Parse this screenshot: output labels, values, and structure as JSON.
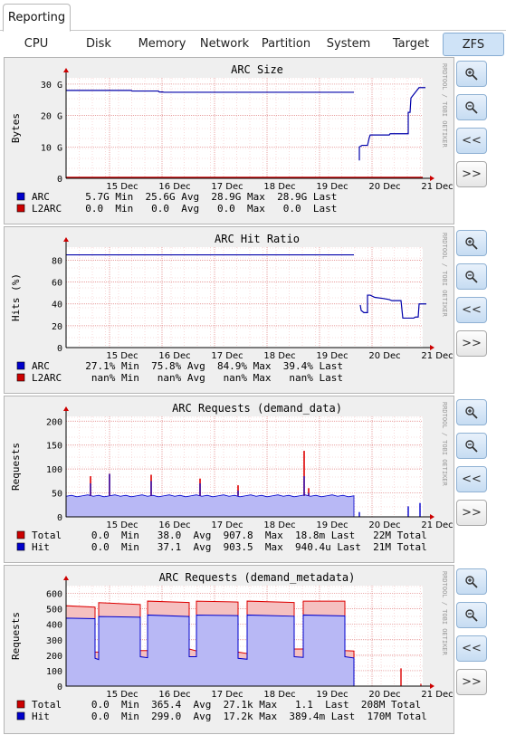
{
  "header": {
    "tab": "Reporting"
  },
  "nav": [
    "CPU",
    "Disk",
    "Memory",
    "Network",
    "Partition",
    "System",
    "Target",
    "ZFS"
  ],
  "watermark": "RRDTOOL / TOBI OETIKER",
  "buttons": {
    "zoom_in": "zoom-in",
    "zoom_out": "zoom-out",
    "back": "<<",
    "forward": ">>"
  },
  "xticks": [
    "15 Dec",
    "16 Dec",
    "17 Dec",
    "18 Dec",
    "19 Dec",
    "20 Dec",
    "21 Dec"
  ],
  "panels": [
    {
      "title": "ARC Size",
      "ylabel": "Bytes",
      "yticks": [
        "30 G",
        "20 G",
        "10 G",
        "0"
      ],
      "ymax": 32,
      "legend": [
        {
          "name": "ARC",
          "color": "#0000cc",
          "stats": "  5.7G Min  25.6G Avg  28.9G Max  28.9G Last"
        },
        {
          "name": "L2ARC",
          "color": "#cc0000",
          "stats": "  0.0  Min   0.0  Avg   0.0  Max   0.0  Last"
        }
      ]
    },
    {
      "title": "ARC Hit Ratio",
      "ylabel": "Hits (%)",
      "yticks": [
        "80",
        "60",
        "40",
        "20",
        "0"
      ],
      "ymax": 92,
      "legend": [
        {
          "name": "ARC",
          "color": "#0000cc",
          "stats": "  27.1% Min  75.8% Avg  84.9% Max  39.4% Last"
        },
        {
          "name": "L2ARC",
          "color": "#cc0000",
          "stats": "   nan% Min   nan% Avg   nan% Max   nan% Last"
        }
      ]
    },
    {
      "title": "ARC Requests (demand_data)",
      "ylabel": "Requests",
      "yticks": [
        "200",
        "150",
        "100",
        "50",
        "0"
      ],
      "ymax": 210,
      "legend": [
        {
          "name": "Total",
          "color": "#cc0000",
          "stats": "   0.0  Min   38.0  Avg  907.8  Max  18.8m Last   22M Total"
        },
        {
          "name": "Hit",
          "color": "#0000cc",
          "stats": "   0.0  Min   37.1  Avg  903.5  Max  940.4u Last  21M Total"
        }
      ]
    },
    {
      "title": "ARC Requests (demand_metadata)",
      "ylabel": "Requests",
      "yticks": [
        "600",
        "500",
        "400",
        "300",
        "200",
        "100",
        "0"
      ],
      "ymax": 650,
      "legend": [
        {
          "name": "Total",
          "color": "#cc0000",
          "stats": "   0.0  Min  365.4  Avg  27.1k Max   1.1  Last  208M Total"
        },
        {
          "name": "Hit",
          "color": "#0000cc",
          "stats": "   0.0  Min  299.0  Avg  17.2k Max  389.4m Last  170M Total"
        }
      ]
    }
  ]
}
